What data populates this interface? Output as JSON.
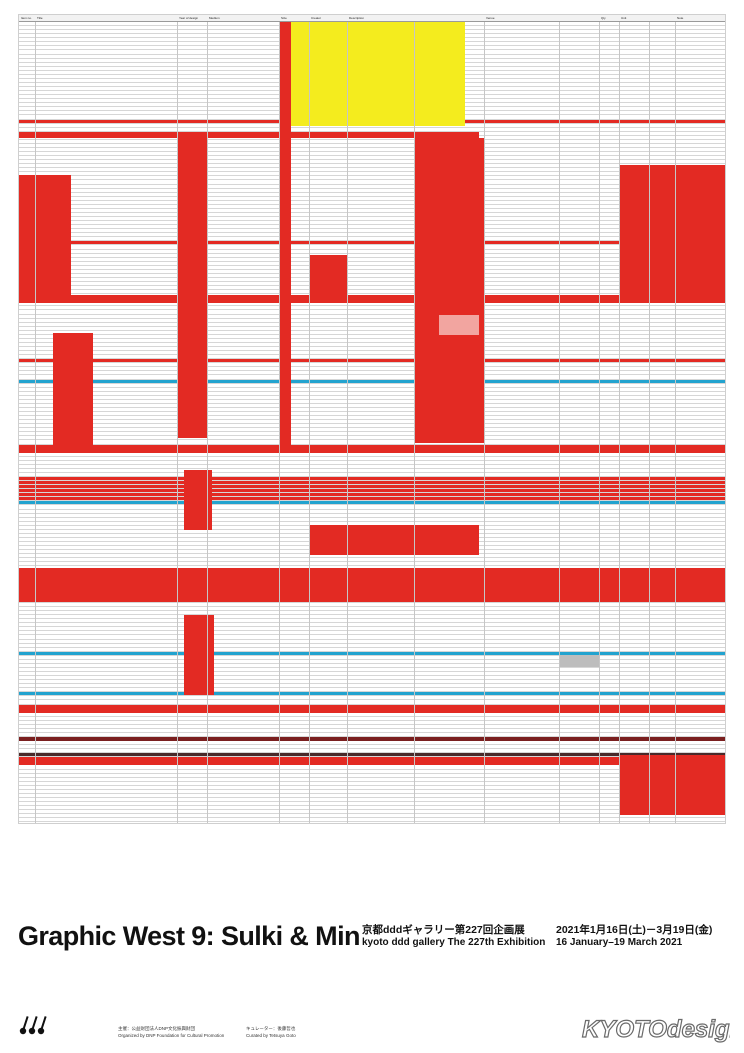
{
  "poster": {
    "title": "Graphic West 9: Sulki & Min",
    "venue_jp": "京都dddギャラリー第227回企画展",
    "venue_en": "kyoto ddd gallery The 227th Exhibition",
    "dates_jp": "2021年1月16日(土)－3月19日(金)",
    "dates_en": "16 January–19 March 2021",
    "organizer_jp": "主催：公益財団法人DNP文化振興財団",
    "organizer_en": "Organized by DNP Foundation for Cultural Promotion",
    "curator_jp": "キュレーター：後藤哲也",
    "curator_en": "Curated by Tetsuya Goto",
    "watermark": "KYOTOdesign"
  },
  "table": {
    "headers": [
      "Item no.",
      "Title",
      "Year of design",
      "Medium",
      "Size",
      "Creator",
      "Description",
      "Venue",
      "Qty",
      "Unit",
      "Note"
    ],
    "row_types": [
      "ok",
      "ok",
      "ok",
      "ok",
      "ok",
      "ok",
      "ok",
      "ok",
      "ok",
      "ok",
      "ok",
      "ok",
      "ok",
      "ok",
      "ok",
      "ok",
      "ok",
      "ok",
      "ok",
      "ok",
      "ok",
      "ok",
      "ok",
      "ok",
      "red",
      "ok",
      "ok",
      "ok",
      "ok",
      "ok",
      "ok",
      "ok",
      "ok",
      "ok",
      "ok",
      "ok",
      "ok",
      "ok",
      "ok",
      "ok",
      "ok",
      "ok",
      "ok",
      "ok",
      "ok",
      "ok",
      "ok",
      "ok",
      "ok",
      "ok",
      "ok",
      "ok",
      "ok",
      "ok",
      "red",
      "ok",
      "ok",
      "ok",
      "ok",
      "ok",
      "ok",
      "ok",
      "ok",
      "ok",
      "ok",
      "ok",
      "ok",
      "ok",
      "ok",
      "ok",
      "ok",
      "ok",
      "ok",
      "ok",
      "ok",
      "ok",
      "ok",
      "ok",
      "ok",
      "ok",
      "ok",
      "ok",
      "ok",
      "red",
      "ok",
      "ok",
      "ok",
      "ok",
      "blue",
      "ok",
      "ok",
      "ok",
      "ok",
      "ok",
      "ok",
      "ok",
      "ok",
      "ok",
      "ok",
      "ok",
      "ok",
      "ok",
      "ok",
      "ok",
      "ok",
      "ok",
      "ok",
      "ok",
      "ok",
      "ok",
      "ok",
      "ok",
      "red",
      "red",
      "red",
      "red",
      "red",
      "red",
      "blue",
      "ok",
      "ok",
      "ok",
      "ok",
      "ok",
      "ok",
      "ok",
      "ok",
      "ok",
      "ok",
      "ok",
      "ok",
      "ok",
      "ok",
      "ok",
      "ok",
      "ok",
      "ok",
      "ok",
      "blue",
      "ok",
      "ok",
      "ok",
      "ok",
      "ok",
      "ok",
      "ok",
      "ok",
      "ok",
      "ok",
      "ok",
      "ok",
      "ok",
      "ok",
      "ok",
      "ok",
      "blue",
      "ok",
      "ok",
      "ok",
      "ok",
      "ok",
      "ok",
      "ok",
      "ok",
      "ok",
      "blue",
      "ok",
      "ok",
      "ok",
      "ok",
      "ok",
      "ok",
      "ok",
      "ok",
      "ok",
      "ok",
      "ok",
      "ok",
      "ok",
      "ok",
      "dark",
      "ok",
      "ok",
      "ok",
      "ok",
      "ok",
      "ok",
      "ok",
      "ok",
      "ok",
      "ok",
      "ok",
      "ok",
      "ok",
      "ok",
      "ok",
      "ok"
    ]
  }
}
